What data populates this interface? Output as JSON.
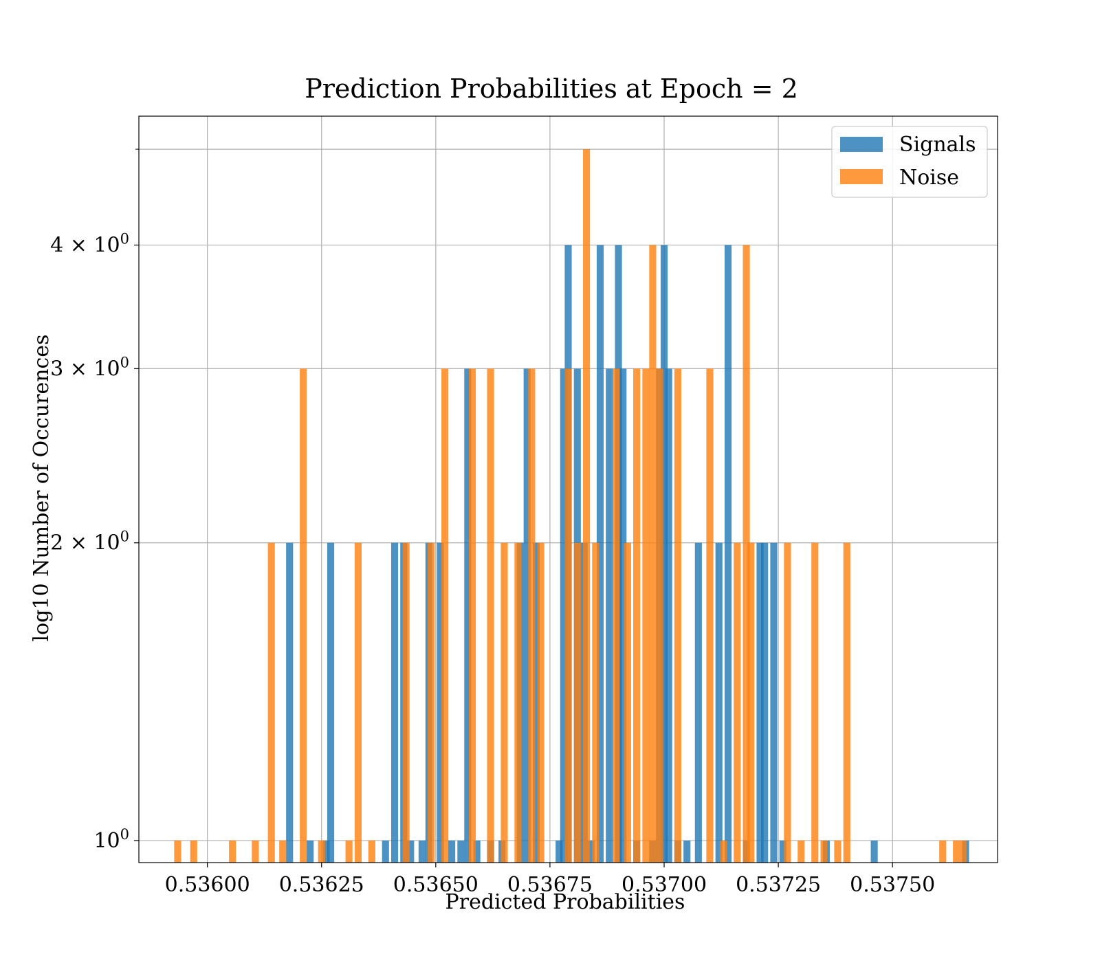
{
  "chart_data": {
    "type": "bar",
    "title": "Prediction Probabilities at Epoch = 2",
    "xlabel": "Predicted Probabilities",
    "ylabel": "log10 Number of Occurences",
    "x_scale": "linear",
    "y_scale": "log",
    "xlim": [
      0.53585,
      0.53773
    ],
    "ylim": [
      0.95,
      5.4
    ],
    "grid": true,
    "legend_position": "top-right",
    "x_ticks": [
      0.536,
      0.53625,
      0.5365,
      0.53675,
      0.537,
      0.53725,
      0.5375
    ],
    "x_tick_labels": [
      "0.53600",
      "0.53625",
      "0.53650",
      "0.53675",
      "0.53700",
      "0.53725",
      "0.53750"
    ],
    "y_ticks": [
      1,
      2,
      3,
      4
    ],
    "y_tick_base": [
      "10",
      "2 × 10",
      "3 × 10",
      "4 × 10"
    ],
    "y_tick_exponent": "0",
    "bin_width": 1.53e-05,
    "series": [
      {
        "name": "Signals",
        "color": "#1f77b4",
        "points": [
          [
            0.53618,
            2
          ],
          [
            0.536225,
            1
          ],
          [
            0.53627,
            2
          ],
          [
            0.53626,
            1
          ],
          [
            0.53639,
            1
          ],
          [
            0.53641,
            2
          ],
          [
            0.53643,
            2
          ],
          [
            0.536445,
            1
          ],
          [
            0.53647,
            1
          ],
          [
            0.536485,
            2
          ],
          [
            0.53651,
            2
          ],
          [
            0.536535,
            1
          ],
          [
            0.536555,
            1
          ],
          [
            0.53657,
            3
          ],
          [
            0.53659,
            1
          ],
          [
            0.53662,
            1
          ],
          [
            0.536645,
            1
          ],
          [
            0.536685,
            2
          ],
          [
            0.5367,
            3
          ],
          [
            0.53672,
            2
          ],
          [
            0.53677,
            1
          ],
          [
            0.53678,
            3
          ],
          [
            0.53679,
            4
          ],
          [
            0.53681,
            3
          ],
          [
            0.536825,
            2
          ],
          [
            0.53684,
            1
          ],
          [
            0.53686,
            4
          ],
          [
            0.53688,
            3
          ],
          [
            0.5369,
            4
          ],
          [
            0.53691,
            3
          ],
          [
            0.53694,
            1
          ],
          [
            0.536975,
            1
          ],
          [
            0.53699,
            3
          ],
          [
            0.537,
            4
          ],
          [
            0.53701,
            3
          ],
          [
            0.53703,
            1
          ],
          [
            0.53705,
            1
          ],
          [
            0.537075,
            2
          ],
          [
            0.53712,
            2
          ],
          [
            0.53714,
            4
          ],
          [
            0.53718,
            1
          ],
          [
            0.53721,
            2
          ],
          [
            0.53722,
            2
          ],
          [
            0.53724,
            2
          ],
          [
            0.53726,
            1
          ],
          [
            0.537355,
            1
          ],
          [
            0.53746,
            1
          ],
          [
            0.53766,
            1
          ]
        ]
      },
      {
        "name": "Noise",
        "color": "#ff7f0e",
        "points": [
          [
            0.535935,
            1
          ],
          [
            0.53597,
            1
          ],
          [
            0.536055,
            1
          ],
          [
            0.536105,
            1
          ],
          [
            0.53614,
            2
          ],
          [
            0.536165,
            1
          ],
          [
            0.53621,
            3
          ],
          [
            0.53625,
            1
          ],
          [
            0.53631,
            1
          ],
          [
            0.53633,
            2
          ],
          [
            0.53636,
            1
          ],
          [
            0.536435,
            2
          ],
          [
            0.53649,
            2
          ],
          [
            0.53652,
            3
          ],
          [
            0.53658,
            3
          ],
          [
            0.53662,
            3
          ],
          [
            0.53665,
            2
          ],
          [
            0.53668,
            2
          ],
          [
            0.53671,
            3
          ],
          [
            0.53673,
            2
          ],
          [
            0.53679,
            3
          ],
          [
            0.53681,
            2
          ],
          [
            0.53683,
            5
          ],
          [
            0.53685,
            2
          ],
          [
            0.536895,
            3
          ],
          [
            0.53692,
            2
          ],
          [
            0.53694,
            3
          ],
          [
            0.53696,
            3
          ],
          [
            0.536975,
            4
          ],
          [
            0.53699,
            3
          ],
          [
            0.53703,
            3
          ],
          [
            0.5371,
            3
          ],
          [
            0.53713,
            1
          ],
          [
            0.53716,
            2
          ],
          [
            0.53718,
            4
          ],
          [
            0.53719,
            2
          ],
          [
            0.53727,
            2
          ],
          [
            0.5373,
            1
          ],
          [
            0.53733,
            2
          ],
          [
            0.53735,
            1
          ],
          [
            0.53738,
            1
          ],
          [
            0.5374,
            2
          ],
          [
            0.53761,
            1
          ],
          [
            0.53764,
            1
          ],
          [
            0.537655,
            1
          ]
        ]
      }
    ]
  }
}
